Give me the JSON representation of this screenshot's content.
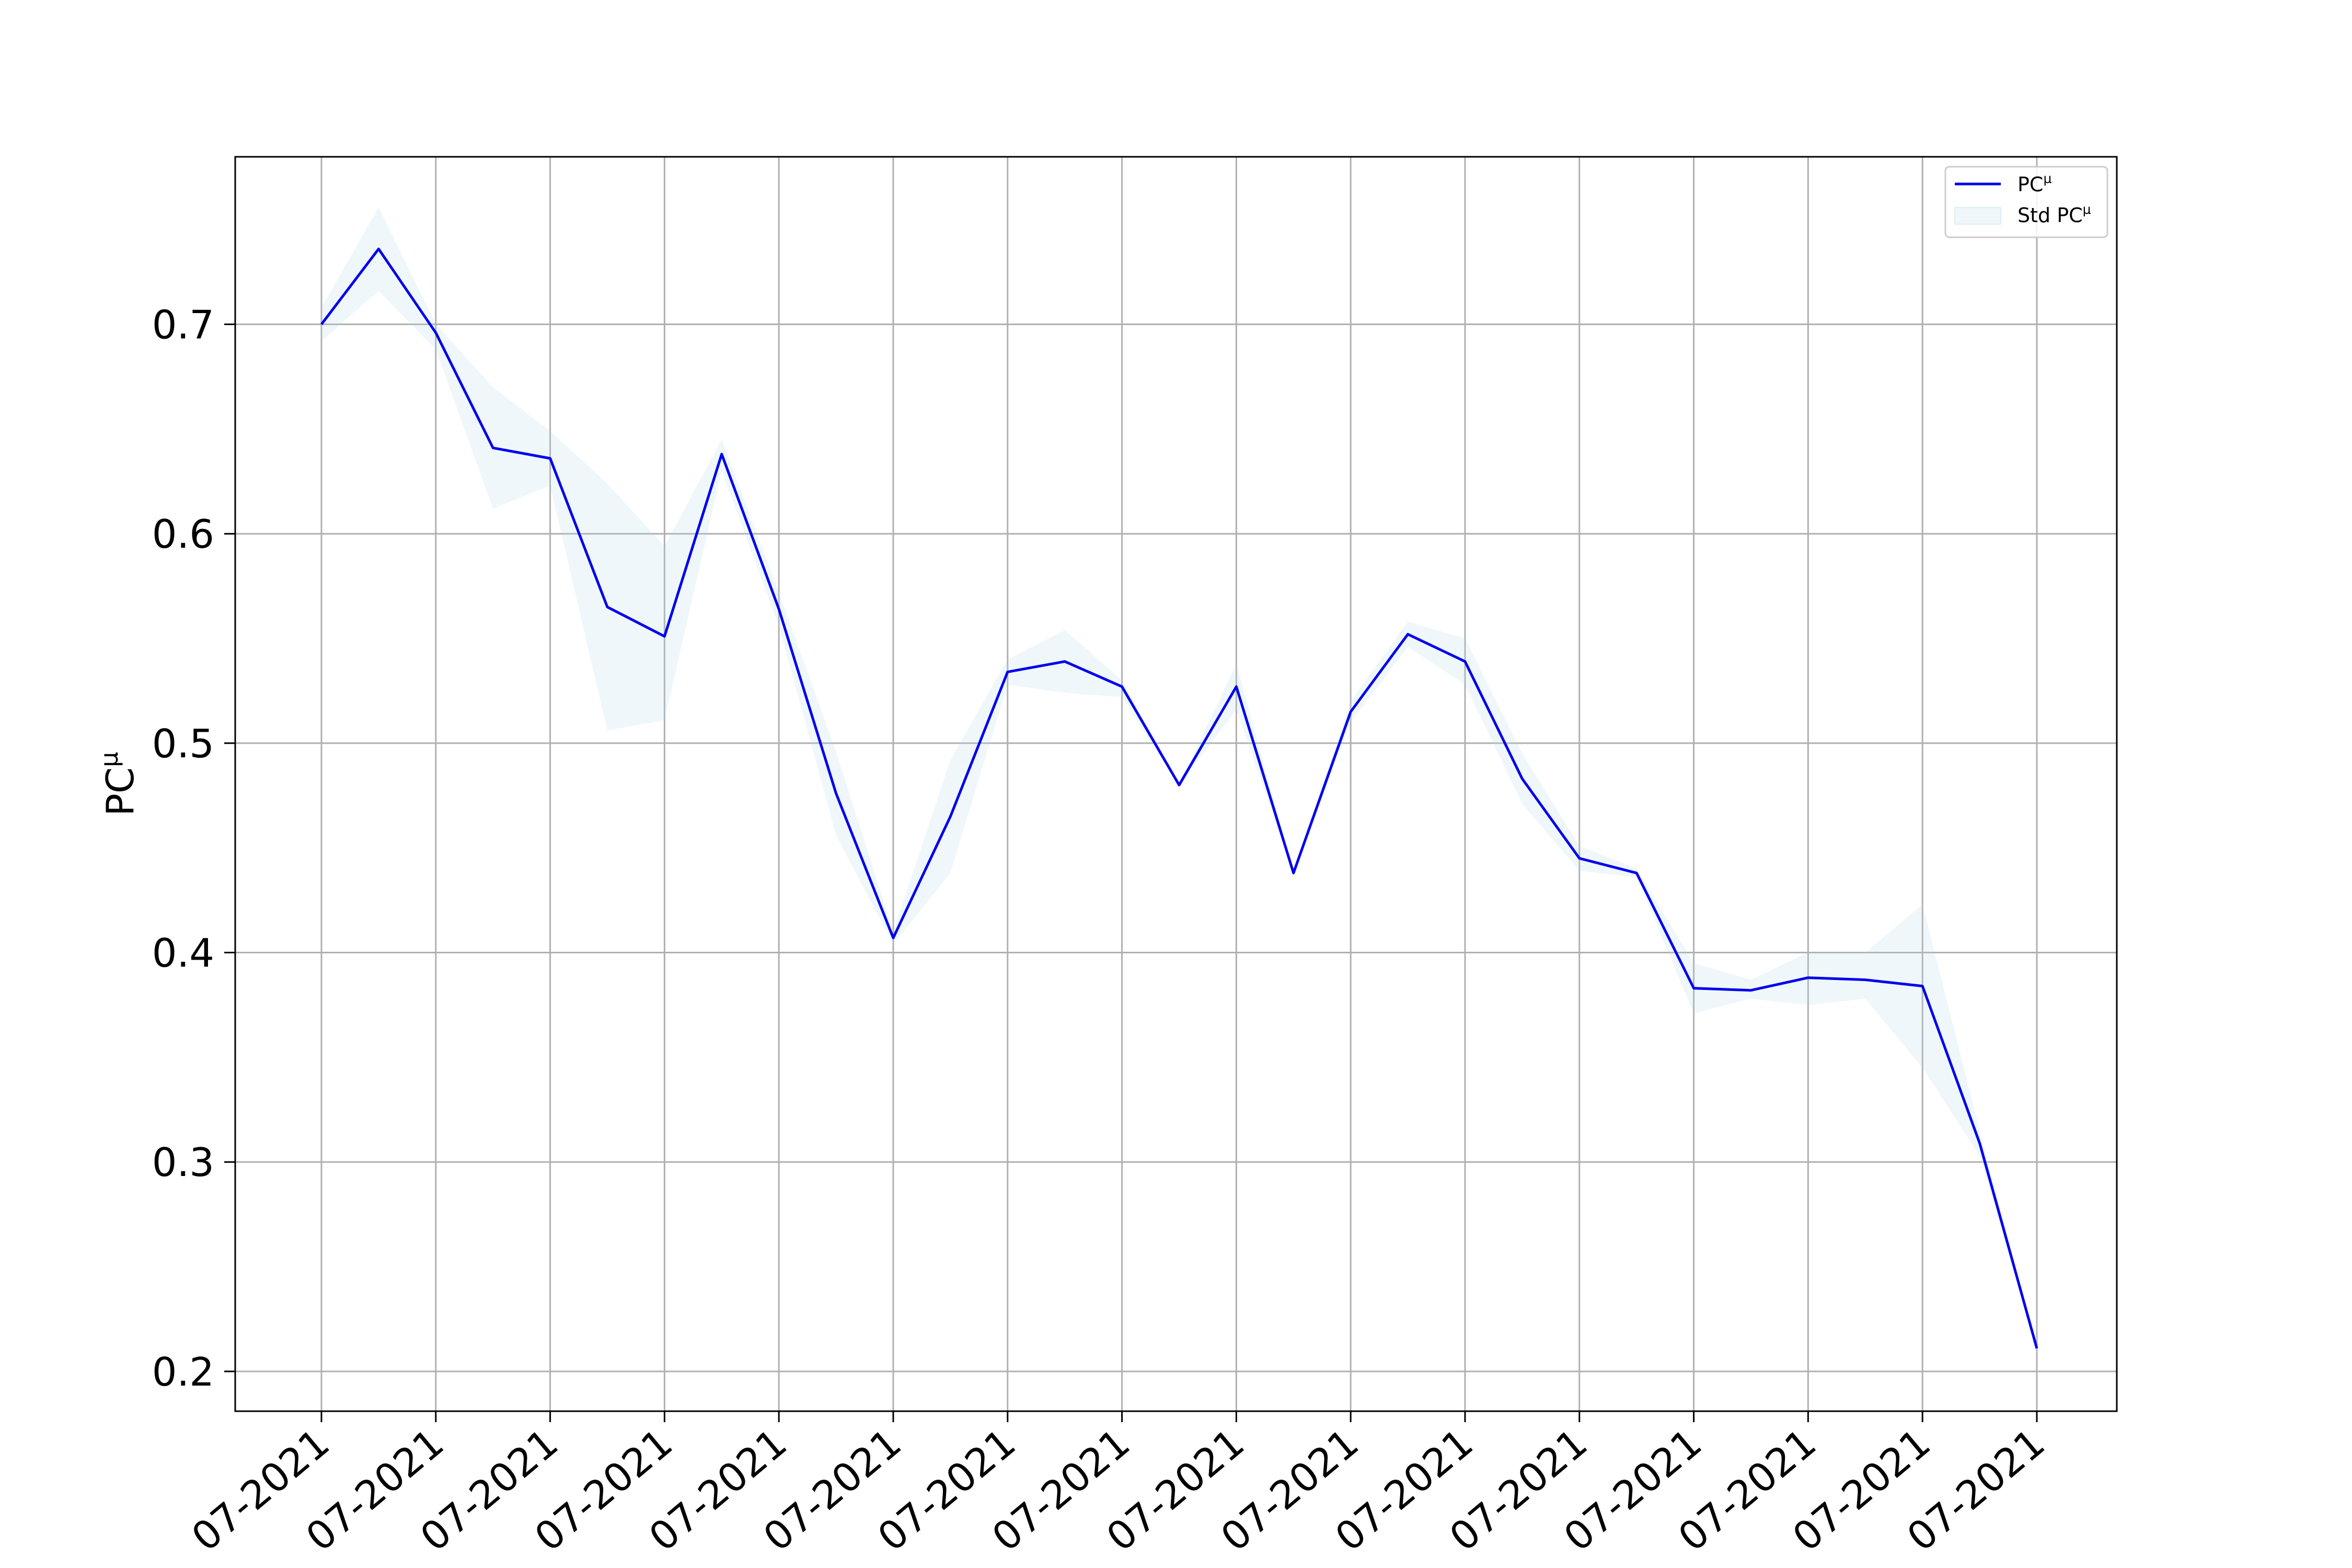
{
  "chart_data": {
    "type": "line",
    "title": "",
    "xlabel": "",
    "ylabel": "PC^μ",
    "ylim": [
      0.181,
      0.78
    ],
    "grid": true,
    "legend_position": "top-right",
    "x_tick_labels": [
      "07-2021",
      "07-2021",
      "07-2021",
      "07-2021",
      "07-2021",
      "07-2021",
      "07-2021",
      "07-2021",
      "07-2021",
      "07-2021",
      "07-2021",
      "07-2021",
      "07-2021",
      "07-2021",
      "07-2021",
      "07-2021"
    ],
    "y_ticks": [
      0.2,
      0.3,
      0.4,
      0.5,
      0.6,
      0.7
    ],
    "y_tick_labels": [
      "0.2",
      "0.3",
      "0.4",
      "0.5",
      "0.6",
      "0.7"
    ],
    "series": [
      {
        "name": "PC^μ",
        "kind": "line",
        "color": "#0000ee",
        "values": [
          0.7,
          0.736,
          0.696,
          0.641,
          0.636,
          0.565,
          0.551,
          0.638,
          0.564,
          0.476,
          0.407,
          0.465,
          0.534,
          0.539,
          0.527,
          0.48,
          0.527,
          0.438,
          0.515,
          0.552,
          0.539,
          0.483,
          0.445,
          0.438,
          0.383,
          0.382,
          0.388,
          0.387,
          0.384,
          0.309,
          0.211
        ]
      },
      {
        "name": "Std PC^μ",
        "kind": "band",
        "color": "#add8e6",
        "upper": [
          0.708,
          0.756,
          0.7,
          0.67,
          0.649,
          0.624,
          0.594,
          0.645,
          0.572,
          0.496,
          0.41,
          0.492,
          0.54,
          0.554,
          0.53,
          0.48,
          0.538,
          0.438,
          0.52,
          0.558,
          0.55,
          0.495,
          0.451,
          0.44,
          0.395,
          0.387,
          0.4,
          0.4,
          0.423,
          0.315,
          0.211
        ],
        "lower": [
          0.692,
          0.716,
          0.688,
          0.612,
          0.623,
          0.506,
          0.511,
          0.63,
          0.556,
          0.456,
          0.404,
          0.438,
          0.528,
          0.524,
          0.522,
          0.48,
          0.516,
          0.438,
          0.51,
          0.546,
          0.528,
          0.471,
          0.439,
          0.436,
          0.371,
          0.378,
          0.375,
          0.378,
          0.345,
          0.303,
          0.211
        ]
      }
    ]
  }
}
